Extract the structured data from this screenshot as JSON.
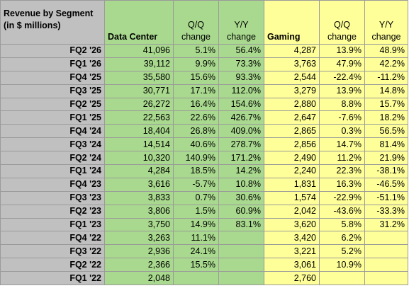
{
  "header": {
    "title_line1": "Revenue by Segment",
    "title_line2": "(in $ millions)",
    "data_center": "Data Center",
    "gaming": "Gaming",
    "qq_line1": "Q/Q",
    "qq_line2": "change",
    "yy_line1": "Y/Y",
    "yy_line2": "change"
  },
  "colors": {
    "label_bg": "#c0c0c0",
    "data_center_bg": "#a9d98e",
    "gaming_bg": "#ffff99"
  },
  "rows": [
    {
      "quarter": "FQ2 '26",
      "dc": "41,096",
      "dc_qq": "5.1%",
      "dc_yy": "56.4%",
      "gm": "4,287",
      "gm_qq": "13.9%",
      "gm_yy": "48.9%"
    },
    {
      "quarter": "FQ1 '26",
      "dc": "39,112",
      "dc_qq": "9.9%",
      "dc_yy": "73.3%",
      "gm": "3,763",
      "gm_qq": "47.9%",
      "gm_yy": "42.2%"
    },
    {
      "quarter": "FQ4 '25",
      "dc": "35,580",
      "dc_qq": "15.6%",
      "dc_yy": "93.3%",
      "gm": "2,544",
      "gm_qq": "-22.4%",
      "gm_yy": "-11.2%"
    },
    {
      "quarter": "FQ3 '25",
      "dc": "30,771",
      "dc_qq": "17.1%",
      "dc_yy": "112.0%",
      "gm": "3,279",
      "gm_qq": "13.9%",
      "gm_yy": "14.8%"
    },
    {
      "quarter": "FQ2 '25",
      "dc": "26,272",
      "dc_qq": "16.4%",
      "dc_yy": "154.6%",
      "gm": "2,880",
      "gm_qq": "8.8%",
      "gm_yy": "15.7%"
    },
    {
      "quarter": "FQ1 '25",
      "dc": "22,563",
      "dc_qq": "22.6%",
      "dc_yy": "426.7%",
      "gm": "2,647",
      "gm_qq": "-7.6%",
      "gm_yy": "18.2%"
    },
    {
      "quarter": "FQ4 '24",
      "dc": "18,404",
      "dc_qq": "26.8%",
      "dc_yy": "409.0%",
      "gm": "2,865",
      "gm_qq": "0.3%",
      "gm_yy": "56.5%"
    },
    {
      "quarter": "FQ3 '24",
      "dc": "14,514",
      "dc_qq": "40.6%",
      "dc_yy": "278.7%",
      "gm": "2,856",
      "gm_qq": "14.7%",
      "gm_yy": "81.4%"
    },
    {
      "quarter": "FQ2 '24",
      "dc": "10,320",
      "dc_qq": "140.9%",
      "dc_yy": "171.2%",
      "gm": "2,490",
      "gm_qq": "11.2%",
      "gm_yy": "21.9%"
    },
    {
      "quarter": "FQ1 '24",
      "dc": "4,284",
      "dc_qq": "18.5%",
      "dc_yy": "14.2%",
      "gm": "2,240",
      "gm_qq": "22.3%",
      "gm_yy": "-38.1%"
    },
    {
      "quarter": "FQ4 '23",
      "dc": "3,616",
      "dc_qq": "-5.7%",
      "dc_yy": "10.8%",
      "gm": "1,831",
      "gm_qq": "16.3%",
      "gm_yy": "-46.5%"
    },
    {
      "quarter": "FQ3 '23",
      "dc": "3,833",
      "dc_qq": "0.7%",
      "dc_yy": "30.6%",
      "gm": "1,574",
      "gm_qq": "-22.9%",
      "gm_yy": "-51.1%"
    },
    {
      "quarter": "FQ2 '23",
      "dc": "3,806",
      "dc_qq": "1.5%",
      "dc_yy": "60.9%",
      "gm": "2,042",
      "gm_qq": "-43.6%",
      "gm_yy": "-33.3%"
    },
    {
      "quarter": "FQ1 '23",
      "dc": "3,750",
      "dc_qq": "14.9%",
      "dc_yy": "83.1%",
      "gm": "3,620",
      "gm_qq": "5.8%",
      "gm_yy": "31.2%"
    },
    {
      "quarter": "FQ4 '22",
      "dc": "3,263",
      "dc_qq": "11.1%",
      "dc_yy": "",
      "gm": "3,420",
      "gm_qq": "6.2%",
      "gm_yy": ""
    },
    {
      "quarter": "FQ3 '22",
      "dc": "2,936",
      "dc_qq": "24.1%",
      "dc_yy": "",
      "gm": "3,221",
      "gm_qq": "5.2%",
      "gm_yy": ""
    },
    {
      "quarter": "FQ2 '22",
      "dc": "2,366",
      "dc_qq": "15.5%",
      "dc_yy": "",
      "gm": "3,061",
      "gm_qq": "10.9%",
      "gm_yy": ""
    },
    {
      "quarter": "FQ1 '22",
      "dc": "2,048",
      "dc_qq": "",
      "dc_yy": "",
      "gm": "2,760",
      "gm_qq": "",
      "gm_yy": ""
    }
  ]
}
